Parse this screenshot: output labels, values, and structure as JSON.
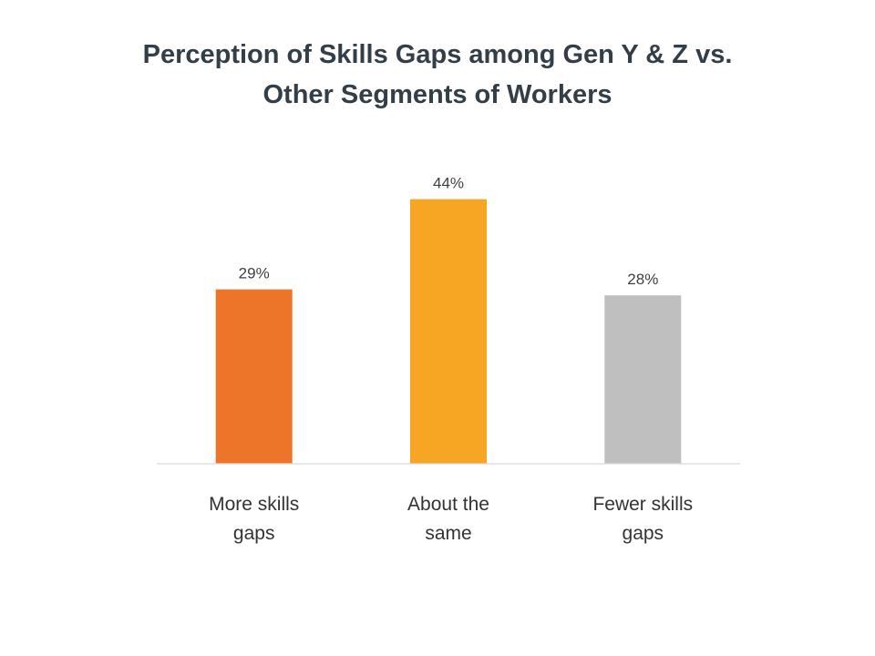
{
  "chart_data": {
    "type": "bar",
    "title_lines": [
      "Perception of Skills Gaps among Gen Y & Z vs.",
      "Other Segments of Workers"
    ],
    "categories": [
      [
        "More skills",
        "gaps"
      ],
      [
        "About the",
        "same"
      ],
      [
        "Fewer skills",
        "gaps"
      ]
    ],
    "values": [
      29,
      44,
      28
    ],
    "data_labels": [
      "29%",
      "44%",
      "28%"
    ],
    "colors": [
      "#ed7529",
      "#f6a623",
      "#bfbfbf"
    ],
    "ylim": [
      0,
      50
    ],
    "grid": false,
    "legend": "none",
    "xlabel": "",
    "ylabel": ""
  }
}
